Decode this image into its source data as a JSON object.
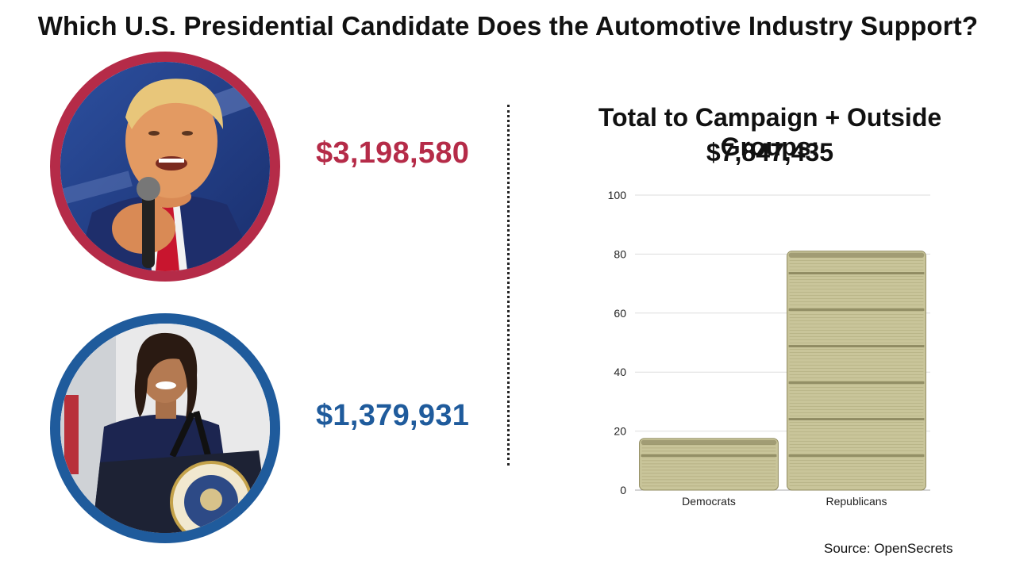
{
  "title": "Which U.S. Presidential Candidate Does the Automotive Industry Support?",
  "candidates": {
    "republican": {
      "amount": "$3,198,580",
      "color": "#b52b48"
    },
    "democrat": {
      "amount": "$1,379,931",
      "color": "#1f5b9c"
    }
  },
  "total": {
    "label": "Total to Campaign + Outside Groups:",
    "amount": "$7,847,435"
  },
  "chart_data": {
    "type": "bar",
    "categories": [
      "Democrats",
      "Republicans"
    ],
    "values": [
      17.5,
      81
    ],
    "ylim": [
      0,
      100
    ],
    "yticks": [
      0,
      20,
      40,
      60,
      80,
      100
    ],
    "title": "",
    "xlabel": "",
    "ylabel": "",
    "grid": true,
    "bar_style": "stacks-of-cash",
    "bar_color": "#c9c59a"
  },
  "source": "Source: OpenSecrets"
}
